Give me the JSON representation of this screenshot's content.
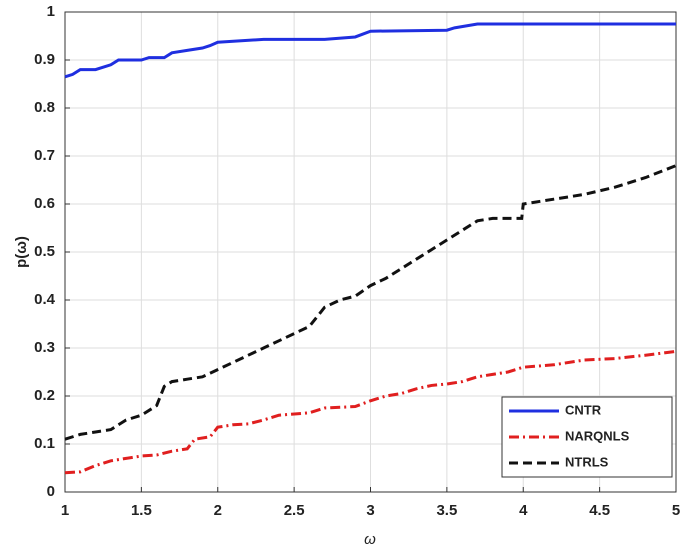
{
  "chart_data": {
    "type": "line",
    "xlabel": "ω",
    "ylabel": "p(ω)",
    "xlim": [
      1,
      5
    ],
    "ylim": [
      0,
      1
    ],
    "xticks": [
      1,
      1.5,
      2,
      2.5,
      3,
      3.5,
      4,
      4.5,
      5
    ],
    "yticks": [
      0,
      0.1,
      0.2,
      0.3,
      0.4,
      0.5,
      0.6,
      0.7,
      0.8,
      0.9,
      1
    ],
    "grid": true,
    "legend": "lower right",
    "series": [
      {
        "name": "CNTR",
        "color": "#1f2fe0",
        "dash": "solid",
        "x": [
          1,
          1.05,
          1.1,
          1.2,
          1.3,
          1.35,
          1.5,
          1.55,
          1.65,
          1.7,
          1.8,
          1.9,
          1.95,
          2.0,
          2.3,
          2.7,
          2.9,
          3.0,
          3.5,
          3.55,
          3.7,
          5
        ],
        "values": [
          0.865,
          0.87,
          0.88,
          0.88,
          0.89,
          0.9,
          0.9,
          0.905,
          0.905,
          0.915,
          0.92,
          0.925,
          0.93,
          0.937,
          0.943,
          0.943,
          0.948,
          0.96,
          0.962,
          0.967,
          0.975,
          0.975
        ]
      },
      {
        "name": "NARQNLS",
        "color": "#e01f1f",
        "dash": "dashdot",
        "x": [
          1,
          1.1,
          1.2,
          1.3,
          1.4,
          1.5,
          1.6,
          1.7,
          1.8,
          1.85,
          1.95,
          2.0,
          2.1,
          2.2,
          2.3,
          2.4,
          2.6,
          2.7,
          2.9,
          3.0,
          3.1,
          3.2,
          3.3,
          3.4,
          3.5,
          3.6,
          3.7,
          3.8,
          3.9,
          4.0,
          4.2,
          4.4,
          4.6,
          4.8,
          5
        ],
        "values": [
          0.04,
          0.042,
          0.055,
          0.065,
          0.07,
          0.075,
          0.077,
          0.085,
          0.09,
          0.11,
          0.115,
          0.135,
          0.14,
          0.142,
          0.15,
          0.16,
          0.165,
          0.175,
          0.178,
          0.19,
          0.2,
          0.205,
          0.215,
          0.222,
          0.225,
          0.23,
          0.24,
          0.245,
          0.25,
          0.26,
          0.265,
          0.275,
          0.278,
          0.285,
          0.293
        ]
      },
      {
        "name": "NTRLS",
        "color": "#111111",
        "dash": "dashed",
        "x": [
          1,
          1.1,
          1.2,
          1.3,
          1.4,
          1.5,
          1.6,
          1.65,
          1.7,
          1.8,
          1.9,
          2.0,
          2.1,
          2.2,
          2.3,
          2.4,
          2.5,
          2.6,
          2.7,
          2.8,
          2.9,
          3.0,
          3.1,
          3.2,
          3.3,
          3.4,
          3.5,
          3.6,
          3.7,
          3.8,
          3.99,
          4.0,
          4.2,
          4.4,
          4.6,
          4.8,
          5
        ],
        "values": [
          0.11,
          0.12,
          0.125,
          0.13,
          0.15,
          0.16,
          0.18,
          0.22,
          0.23,
          0.235,
          0.24,
          0.255,
          0.27,
          0.285,
          0.3,
          0.315,
          0.33,
          0.345,
          0.385,
          0.4,
          0.408,
          0.43,
          0.445,
          0.465,
          0.485,
          0.505,
          0.525,
          0.545,
          0.565,
          0.57,
          0.57,
          0.6,
          0.61,
          0.62,
          0.635,
          0.655,
          0.68
        ]
      }
    ]
  }
}
